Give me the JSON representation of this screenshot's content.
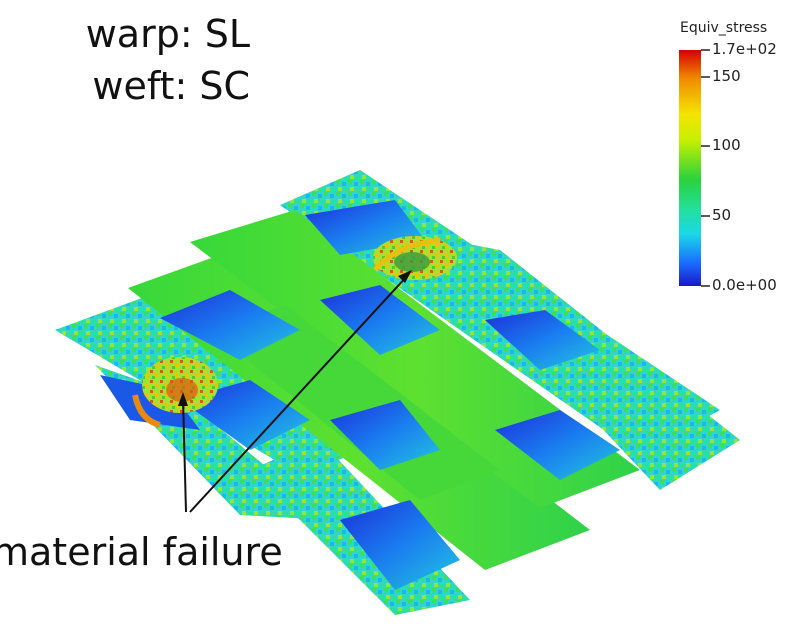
{
  "title": {
    "line1": "warp: SL",
    "line2": "weft: SC"
  },
  "annotation": {
    "label": "material failure"
  },
  "colorbar": {
    "title": "Equiv_stress",
    "ticks": [
      "1.7e+02",
      "150",
      "100",
      "50",
      "0.0e+00"
    ],
    "colors": [
      "#d40000",
      "#f08a00",
      "#f5e400",
      "#c8f000",
      "#29d23c",
      "#22e0a0",
      "#1ad8e8",
      "#1a6fff",
      "#1b18c8"
    ]
  }
}
